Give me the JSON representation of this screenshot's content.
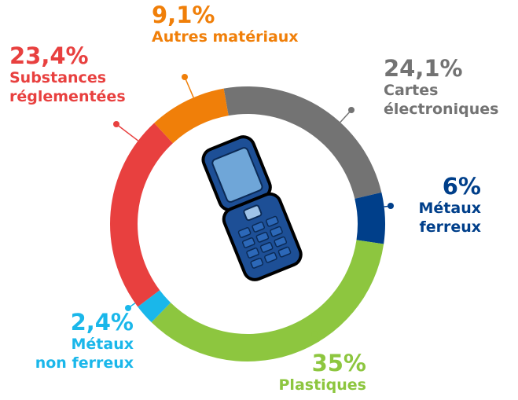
{
  "chart_data": {
    "type": "donut",
    "categories": [
      "Cartes\nélectroniques",
      "Métaux\nferreux",
      "Plastiques",
      "Métaux\nnon ferreux",
      "Substances\nréglementées",
      "Autres matériaux"
    ],
    "values": [
      24.1,
      6,
      35,
      2.4,
      23.4,
      9.1
    ],
    "value_labels": [
      "24,1%",
      "6%",
      "35%",
      "2,4%",
      "23,4%",
      "9,1%"
    ],
    "colors": [
      "#737373",
      "#003f8a",
      "#8dc63f",
      "#1ab7ea",
      "#e8403f",
      "#f07f09"
    ]
  }
}
